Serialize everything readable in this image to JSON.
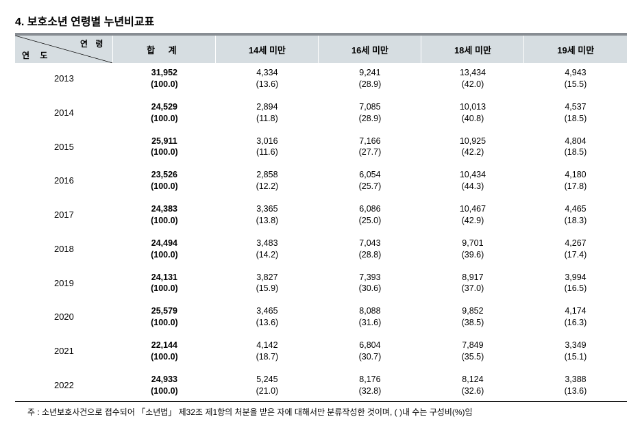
{
  "title": "4. 보호소년 연령별 누년비교표",
  "header": {
    "diag_top": "연 령",
    "diag_bottom": "연  도",
    "columns": [
      "합 계",
      "14세 미만",
      "16세 미만",
      "18세 미만",
      "19세 미만"
    ]
  },
  "col_widths_pct": [
    16,
    16.8,
    16.8,
    16.8,
    16.8,
    16.8
  ],
  "header_bg": "#d6dde1",
  "title_rule_color": "#888d93",
  "rows": [
    {
      "year": "2013",
      "total": "31,952",
      "total_pct": "(100.0)",
      "c1": "4,334",
      "c1p": "(13.6)",
      "c2": "9,241",
      "c2p": "(28.9)",
      "c3": "13,434",
      "c3p": "(42.0)",
      "c4": "4,943",
      "c4p": "(15.5)"
    },
    {
      "year": "2014",
      "total": "24,529",
      "total_pct": "(100.0)",
      "c1": "2,894",
      "c1p": "(11.8)",
      "c2": "7,085",
      "c2p": "(28.9)",
      "c3": "10,013",
      "c3p": "(40.8)",
      "c4": "4,537",
      "c4p": "(18.5)"
    },
    {
      "year": "2015",
      "total": "25,911",
      "total_pct": "(100.0)",
      "c1": "3,016",
      "c1p": "(11.6)",
      "c2": "7,166",
      "c2p": "(27.7)",
      "c3": "10,925",
      "c3p": "(42.2)",
      "c4": "4,804",
      "c4p": "(18.5)"
    },
    {
      "year": "2016",
      "total": "23,526",
      "total_pct": "(100.0)",
      "c1": "2,858",
      "c1p": "(12.2)",
      "c2": "6,054",
      "c2p": "(25.7)",
      "c3": "10,434",
      "c3p": "(44.3)",
      "c4": "4,180",
      "c4p": "(17.8)"
    },
    {
      "year": "2017",
      "total": "24,383",
      "total_pct": "(100.0)",
      "c1": "3,365",
      "c1p": "(13.8)",
      "c2": "6,086",
      "c2p": "(25.0)",
      "c3": "10,467",
      "c3p": "(42.9)",
      "c4": "4,465",
      "c4p": "(18.3)"
    },
    {
      "year": "2018",
      "total": "24,494",
      "total_pct": "(100.0)",
      "c1": "3,483",
      "c1p": "(14.2)",
      "c2": "7,043",
      "c2p": "(28.8)",
      "c3": "9,701",
      "c3p": "(39.6)",
      "c4": "4,267",
      "c4p": "(17.4)"
    },
    {
      "year": "2019",
      "total": "24,131",
      "total_pct": "(100.0)",
      "c1": "3,827",
      "c1p": "(15.9)",
      "c2": "7,393",
      "c2p": "(30.6)",
      "c3": "8,917",
      "c3p": "(37.0)",
      "c4": "3,994",
      "c4p": "(16.5)"
    },
    {
      "year": "2020",
      "total": "25,579",
      "total_pct": "(100.0)",
      "c1": "3,465",
      "c1p": "(13.6)",
      "c2": "8,088",
      "c2p": "(31.6)",
      "c3": "9,852",
      "c3p": "(38.5)",
      "c4": "4,174",
      "c4p": "(16.3)"
    },
    {
      "year": "2021",
      "total": "22,144",
      "total_pct": "(100.0)",
      "c1": "4,142",
      "c1p": "(18.7)",
      "c2": "6,804",
      "c2p": "(30.7)",
      "c3": "7,849",
      "c3p": "(35.5)",
      "c4": "3,349",
      "c4p": "(15.1)"
    },
    {
      "year": "2022",
      "total": "24,933",
      "total_pct": "(100.0)",
      "c1": "5,245",
      "c1p": "(21.0)",
      "c2": "8,176",
      "c2p": "(32.8)",
      "c3": "8,124",
      "c3p": "(32.6)",
      "c4": "3,388",
      "c4p": "(13.6)"
    }
  ],
  "footnote": "주 : 소년보호사건으로 접수되어 「소년법」 제32조 제1항의 처분을 받은 자에 대해서만 분류작성한 것이며, ( )내 수는 구성비(%)임"
}
